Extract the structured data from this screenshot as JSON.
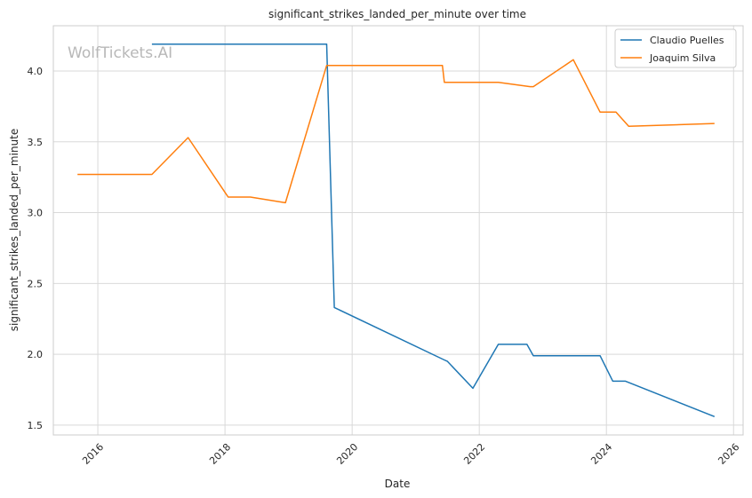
{
  "watermark": "WolfTickets.AI",
  "chart_data": {
    "type": "line",
    "title": "significant_strikes_landed_per_minute over time",
    "xlabel": "Date",
    "ylabel": "significant_strikes_landed_per_minute",
    "xlim": [
      2015.3,
      2026.15
    ],
    "ylim": [
      1.43,
      4.32
    ],
    "xticks": [
      2016,
      2018,
      2020,
      2022,
      2024,
      2026
    ],
    "xtick_labels": [
      "2016",
      "2018",
      "2020",
      "2022",
      "2024",
      "2026"
    ],
    "yticks": [
      1.5,
      2.0,
      2.5,
      3.0,
      3.5,
      4.0
    ],
    "ytick_labels": [
      "1.5",
      "2.0",
      "2.5",
      "3.0",
      "3.5",
      "4.0"
    ],
    "grid": true,
    "legend_position": "top-right",
    "series": [
      {
        "name": "Claudio Puelles",
        "color": "#1f77b4",
        "x": [
          2016.85,
          2019.6,
          2019.72,
          2021.45,
          2021.5,
          2021.9,
          2022.3,
          2022.75,
          2022.85,
          2023.9,
          2024.1,
          2024.3,
          2025.7
        ],
        "y": [
          4.19,
          4.19,
          2.33,
          1.96,
          1.95,
          1.76,
          2.07,
          2.07,
          1.99,
          1.99,
          1.81,
          1.81,
          1.56
        ]
      },
      {
        "name": "Joaquim Silva",
        "color": "#ff7f0e",
        "x": [
          2015.68,
          2016.85,
          2017.42,
          2018.05,
          2018.4,
          2018.95,
          2019.6,
          2021.42,
          2021.45,
          2022.3,
          2022.8,
          2022.85,
          2023.48,
          2023.9,
          2024.15,
          2024.35,
          2025.7
        ],
        "y": [
          3.27,
          3.27,
          3.53,
          3.11,
          3.11,
          3.07,
          4.04,
          4.04,
          3.92,
          3.92,
          3.89,
          3.89,
          4.08,
          3.71,
          3.71,
          3.61,
          3.63
        ]
      }
    ]
  }
}
